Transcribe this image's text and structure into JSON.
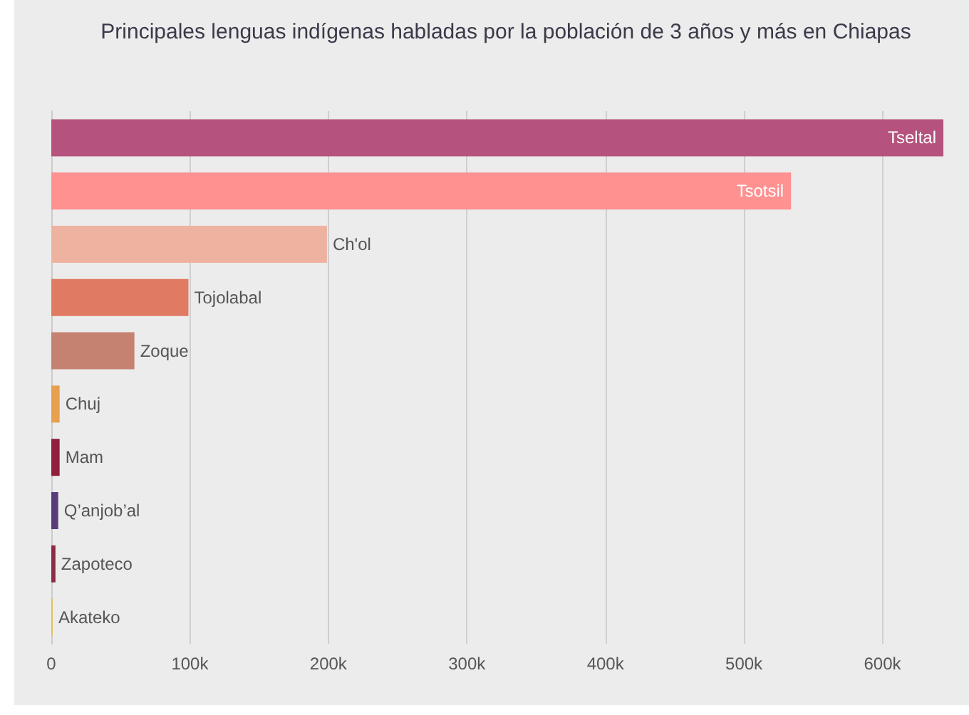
{
  "chart_data": {
    "type": "bar",
    "orientation": "horizontal",
    "title": "Principales lenguas indígenas habladas por la población de 3 años y más en Chiapas",
    "categories": [
      "Tseltal",
      "Tsotsil",
      "Ch'ol",
      "Tojolabal",
      "Zoque",
      "Chuj",
      "Mam",
      "Q’anjob’al",
      "Zapoteco",
      "Akateko"
    ],
    "values": [
      644000,
      534000,
      199000,
      99000,
      60000,
      6000,
      6000,
      5000,
      3000,
      1000
    ],
    "colors": [
      "#b5527d",
      "#ff9191",
      "#eeb3a0",
      "#e07a62",
      "#c58270",
      "#e8a04f",
      "#8f1f3d",
      "#5a3c7a",
      "#8f2a45",
      "#e3c25a"
    ],
    "xlim": [
      0,
      645000
    ],
    "xticks": [
      0,
      {
        "value": 100000,
        "label": "100k"
      },
      {
        "value": 200000,
        "label": "200k"
      },
      {
        "value": 300000,
        "label": "300k"
      },
      {
        "value": 400000,
        "label": "400k"
      },
      {
        "value": 500000,
        "label": "500k"
      },
      {
        "value": 600000,
        "label": "600k"
      }
    ],
    "grid": "x",
    "tick_labels": "x"
  }
}
